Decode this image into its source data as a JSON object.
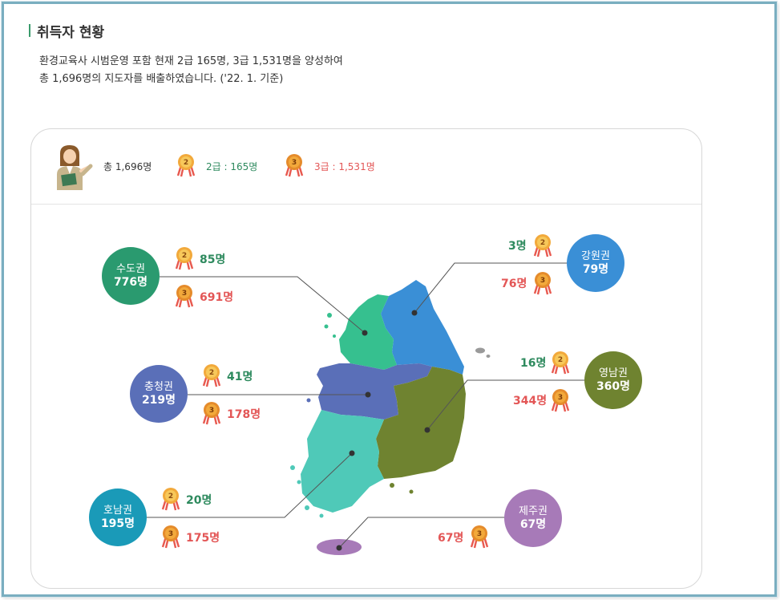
{
  "section": {
    "title": "취득자 현황",
    "desc_line1": "환경교육사 시범운영 포함 현재 2급 165명, 3급 1,531명을 양성하여",
    "desc_line2": "총 1,696명의 지도자를 배출하였습니다. ('22. 1. 기준)"
  },
  "legend": {
    "total": "총 1,696명",
    "level2": "2급 : 165명",
    "level3": "3급 : 1,531명",
    "medal2_digit": "2",
    "medal3_digit": "3"
  },
  "regions": {
    "sudo": {
      "name": "수도권",
      "total": "776명",
      "l2": "85명",
      "l3": "691명",
      "color": "#2a9a6f"
    },
    "gangwon": {
      "name": "강원권",
      "total": "79명",
      "l2": "3명",
      "l3": "76명",
      "color": "#3a8fd6"
    },
    "chungcheong": {
      "name": "충청권",
      "total": "219명",
      "l2": "41명",
      "l3": "178명",
      "color": "#5a6fb8"
    },
    "yeongnam": {
      "name": "영남권",
      "total": "360명",
      "l2": "16명",
      "l3": "344명",
      "color": "#6f8330"
    },
    "honam": {
      "name": "호남권",
      "total": "195명",
      "l2": "20명",
      "l3": "175명",
      "color": "#1a9ab8"
    },
    "jeju": {
      "name": "제주권",
      "total": "67명",
      "l3": "67명",
      "color": "#a77ab8"
    }
  },
  "icons": {
    "teacher": "teacher-icon",
    "medal": "medal-icon"
  }
}
